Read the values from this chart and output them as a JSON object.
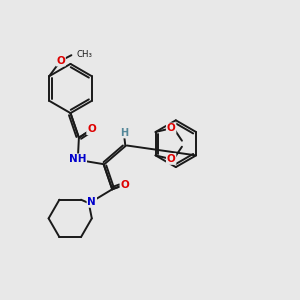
{
  "bg_color": "#e8e8e8",
  "bond_color": "#1a1a1a",
  "atom_colors": {
    "O": "#dd0000",
    "N": "#0000cc",
    "H": "#558899",
    "C": "#1a1a1a"
  }
}
